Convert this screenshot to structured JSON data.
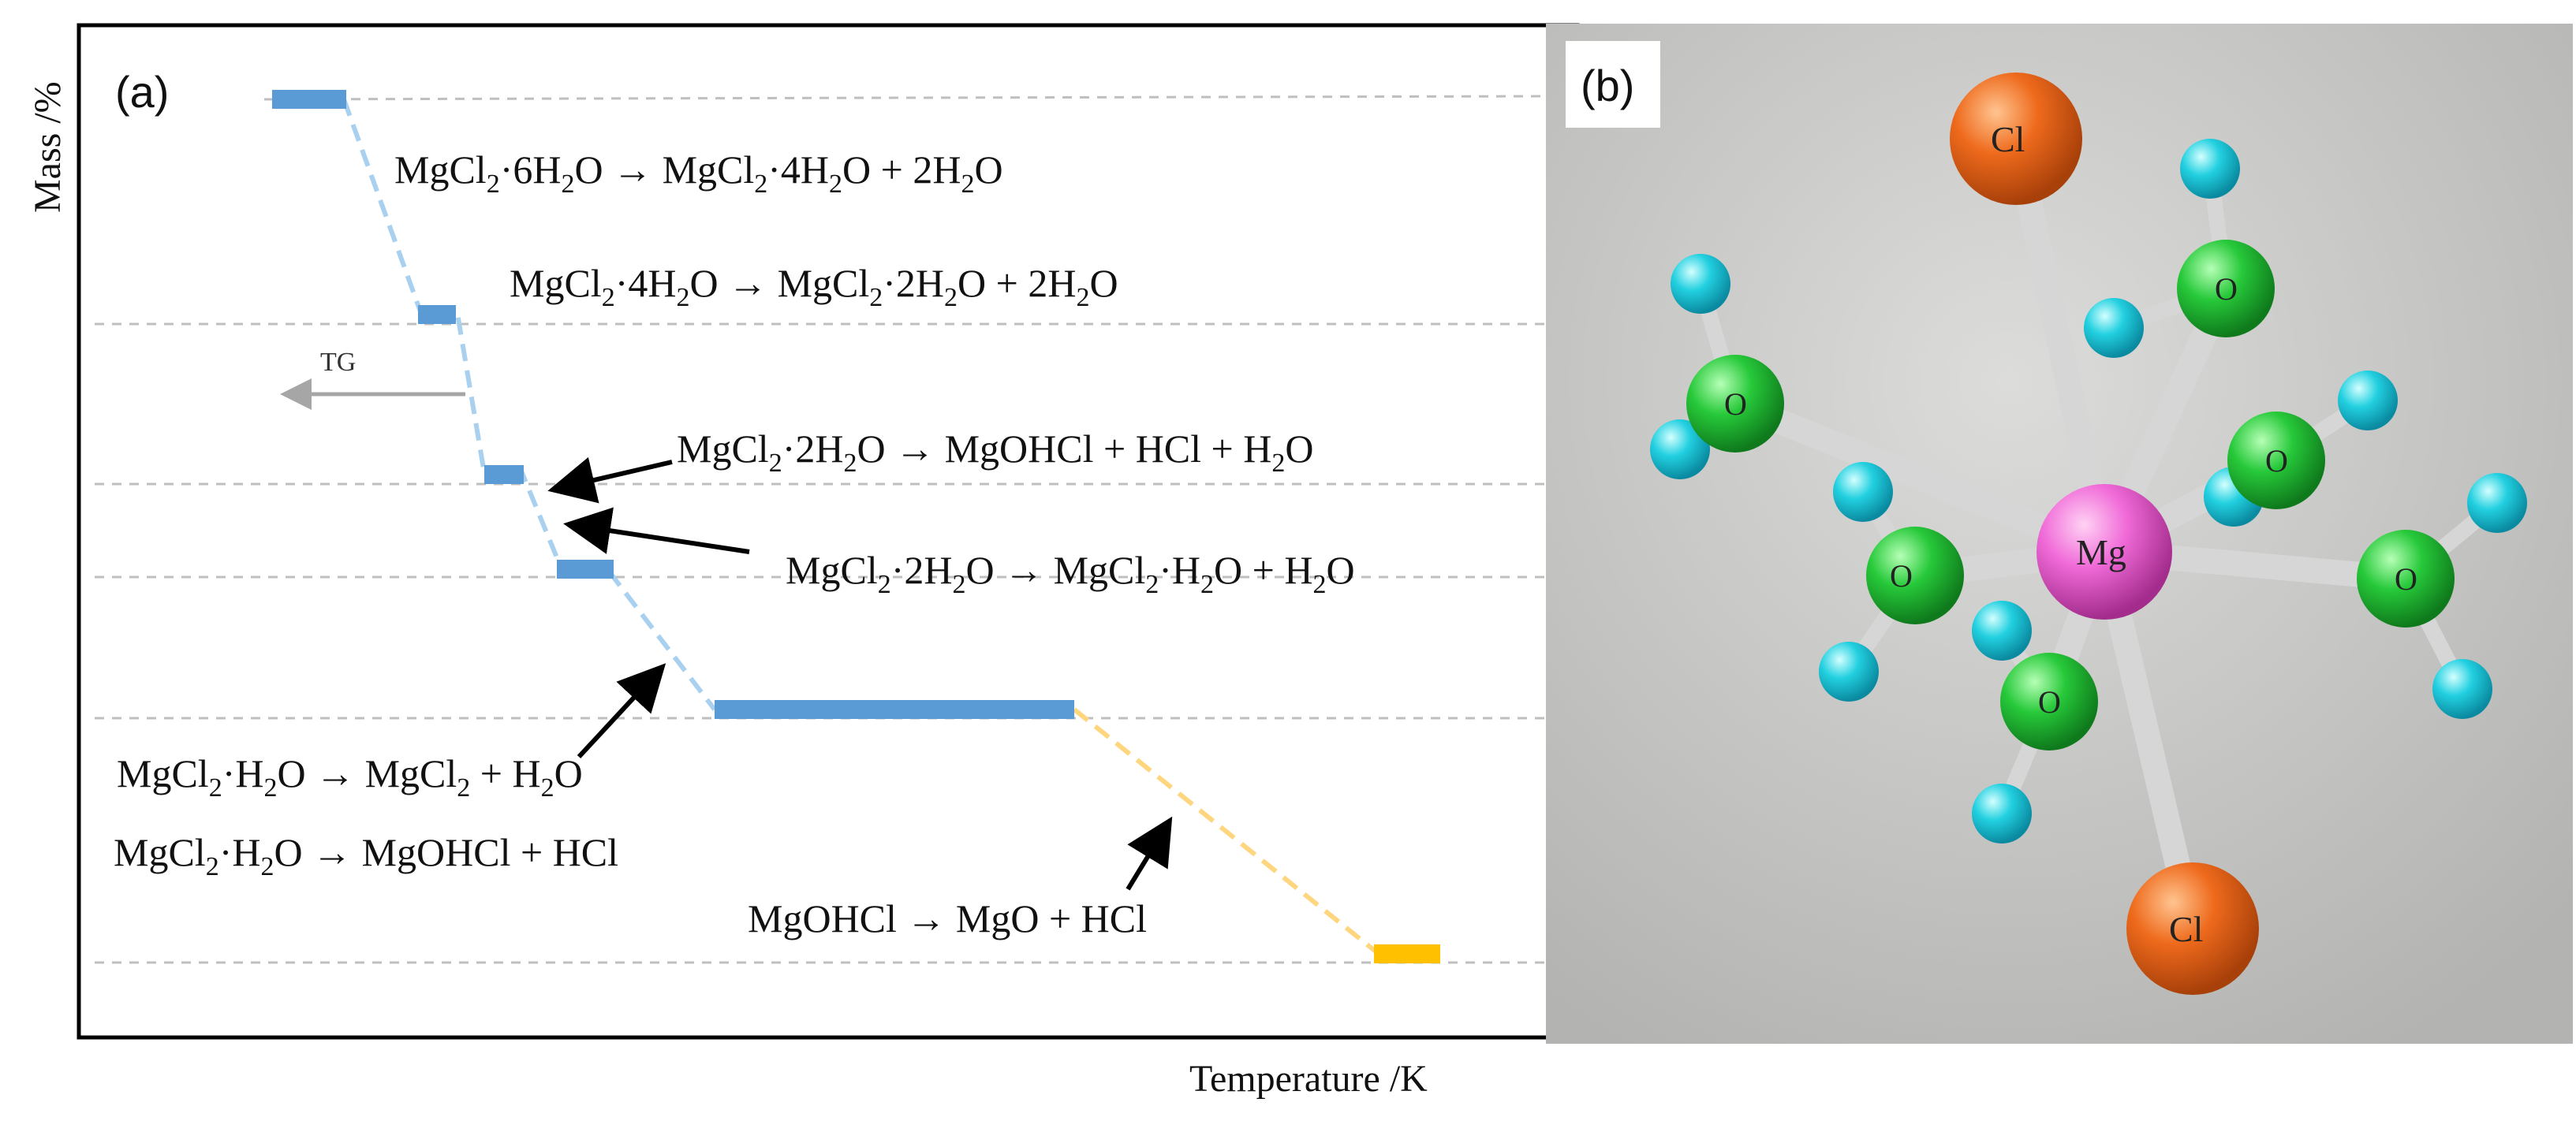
{
  "panel_a": {
    "label": "(a)",
    "y_axis_label": "Mass /%",
    "x_axis_label": "Temperature /K",
    "tg_label": "TG",
    "reactions": [
      {
        "main": "MgCl",
        "s1": "2",
        "m1": "·6H",
        "s2": "2",
        "m2": "O → MgCl",
        "s3": "2",
        "m3": "·4H",
        "s4": "2",
        "m4": "O + 2H",
        "s5": "2",
        "m5": "O"
      },
      {
        "main": "MgCl",
        "s1": "2",
        "m1": "·4H",
        "s2": "2",
        "m2": "O → MgCl",
        "s3": "2",
        "m3": "·2H",
        "s4": "2",
        "m4": "O + 2H",
        "s5": "2",
        "m5": "O"
      },
      {
        "main": "MgCl",
        "s1": "2",
        "m1": "·2H",
        "s2": "2",
        "m2": "O → MgOHCl + HCl + H",
        "s3": "2",
        "m3": "O"
      },
      {
        "main": "MgCl",
        "s1": "2",
        "m1": "·2H",
        "s2": "2",
        "m2": "O → MgCl",
        "s3": "2",
        "m3": "·H",
        "s4": "2",
        "m4": "O + H",
        "s5": "2",
        "m5": "O"
      },
      {
        "main": "MgCl",
        "s1": "2",
        "m1": "·H",
        "s2": "2",
        "m2": "O → MgCl",
        "s3": "2",
        "m3": " + H",
        "s4": "2",
        "m4": "O"
      },
      {
        "main": "MgCl",
        "s1": "2",
        "m1": "·H",
        "s2": "2",
        "m2": "O → MgOHCl + HCl"
      },
      {
        "main": "MgOHCl → MgO + HCl"
      }
    ],
    "colors": {
      "blue_step": "#5b9bd5",
      "blue_dash": "#a9d1ef",
      "orange_step": "#ffc000",
      "orange_dash": "#ffd680",
      "grid": "#c0c0c0",
      "arrow": "#000000",
      "tg_arrow": "#a6a6a6"
    }
  },
  "panel_b": {
    "label": "(b)",
    "atoms": {
      "center": "Mg",
      "chlorine": [
        "Cl",
        "Cl"
      ],
      "oxygen": [
        "O",
        "O",
        "O",
        "O",
        "O",
        "O"
      ]
    },
    "colors": {
      "mg": "#f06ad8",
      "cl": "#e8611c",
      "o": "#22c43a",
      "h": "#1ec8dc",
      "bond": "#d6d6d6",
      "background": "#c4c4c2"
    }
  }
}
